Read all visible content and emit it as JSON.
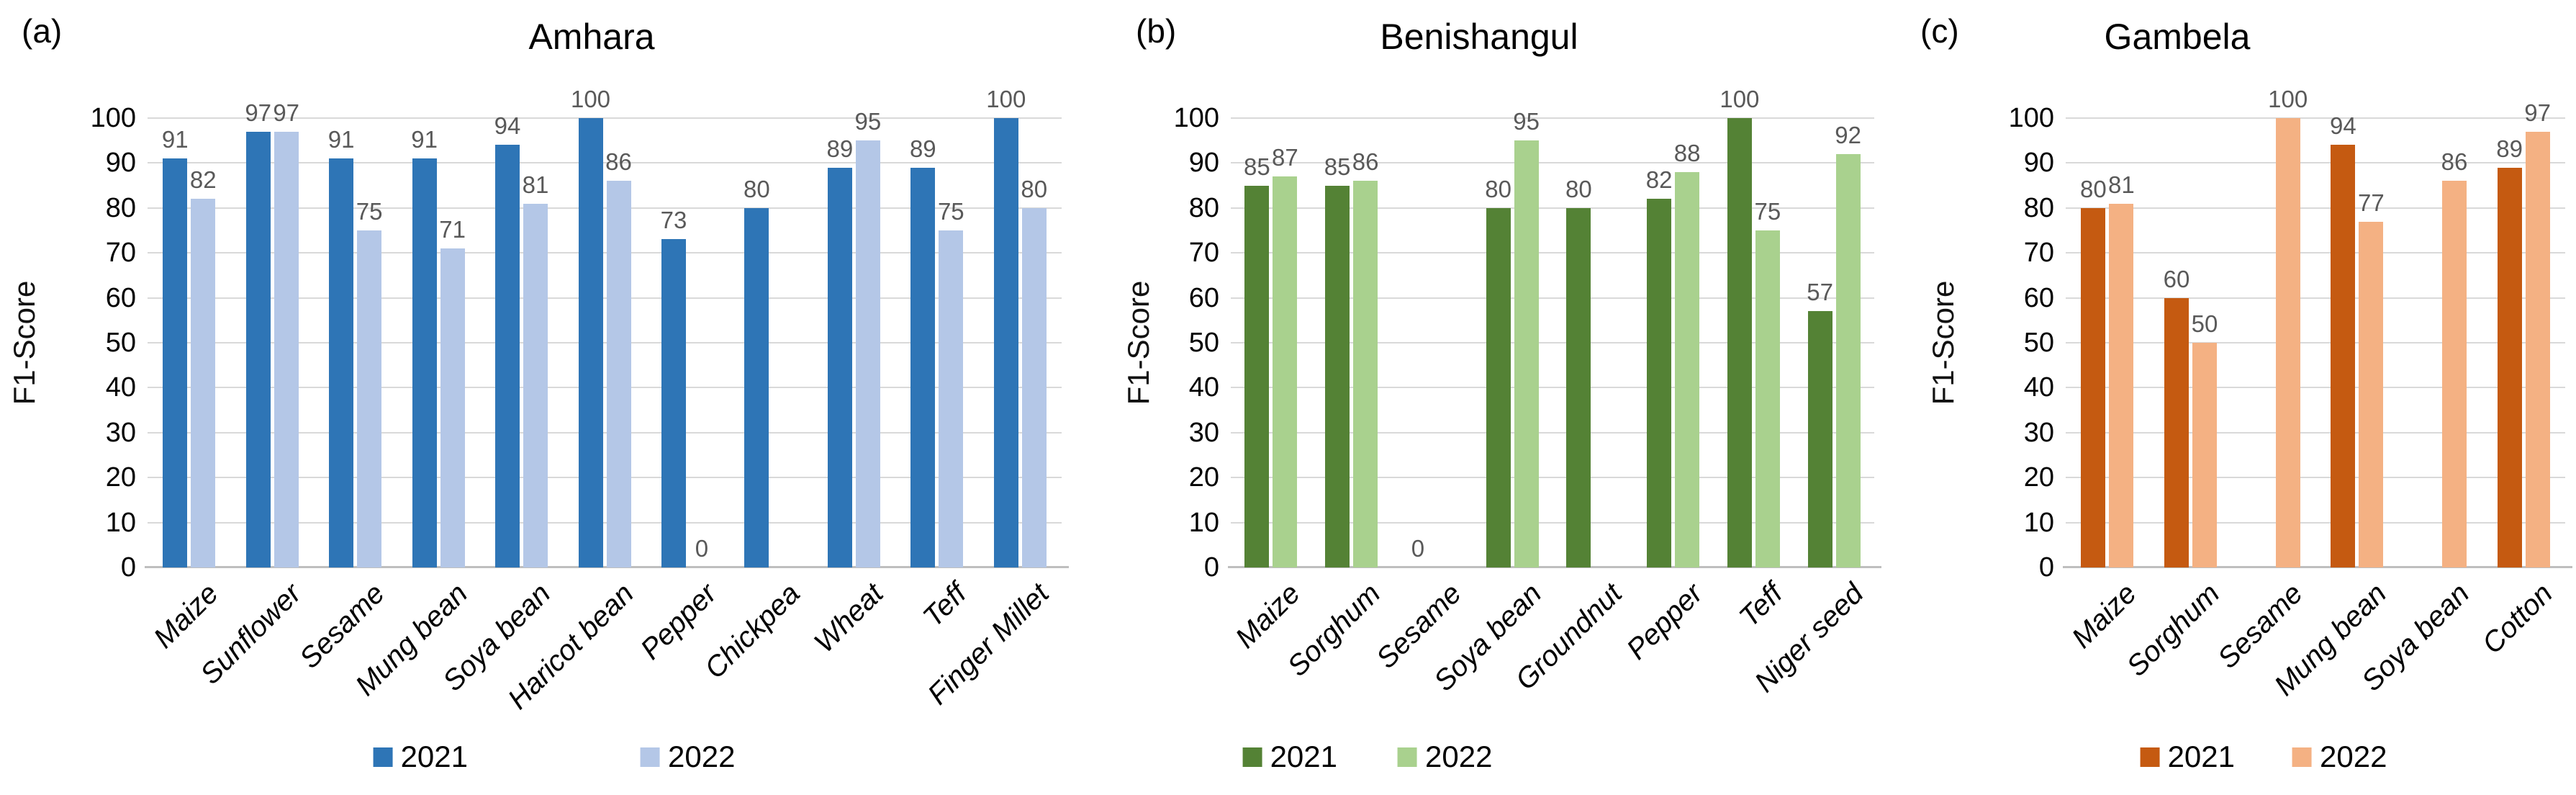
{
  "ylabel": "F1-Score",
  "colors": {
    "gridline": "#D9D9D9",
    "axis_line": "#BFBFBF",
    "value_label": "#595959",
    "text": "#000000"
  },
  "chart_data": [
    {
      "type": "bar",
      "panel_label": "(a)",
      "title": "Amhara",
      "ylabel": "F1-Score",
      "ylim": [
        0,
        100
      ],
      "yticks": [
        0,
        10,
        20,
        30,
        40,
        50,
        60,
        70,
        80,
        90,
        100
      ],
      "grid": true,
      "legend_position": "bottom",
      "categories": [
        "Maize",
        "Sunflower",
        "Sesame",
        "Mung bean",
        "Soya bean",
        "Haricot bean",
        "Pepper",
        "Chickpea",
        "Wheat",
        "Teff",
        "Finger Millet"
      ],
      "series": [
        {
          "name": "2021",
          "color": "#2E75B6",
          "values": [
            91,
            97,
            91,
            91,
            94,
            100,
            73,
            80,
            89,
            89,
            100
          ]
        },
        {
          "name": "2022",
          "color": "#B4C7E7",
          "values": [
            82,
            97,
            75,
            71,
            81,
            86,
            0,
            null,
            95,
            75,
            80
          ]
        }
      ]
    },
    {
      "type": "bar",
      "panel_label": "(b)",
      "title": "Benishangul",
      "ylabel": "F1-Score",
      "ylim": [
        0,
        100
      ],
      "yticks": [
        0,
        10,
        20,
        30,
        40,
        50,
        60,
        70,
        80,
        90,
        100
      ],
      "grid": true,
      "legend_position": "bottom",
      "categories": [
        "Maize",
        "Sorghum",
        "Sesame",
        "Soya bean",
        "Groundnut",
        "Pepper",
        "Teff",
        "Niger seed"
      ],
      "series": [
        {
          "name": "2021",
          "color": "#548235",
          "values": [
            85,
            85,
            0,
            80,
            80,
            82,
            100,
            57
          ]
        },
        {
          "name": "2022",
          "color": "#A9D18E",
          "values": [
            87,
            86,
            null,
            95,
            null,
            88,
            75,
            92
          ]
        }
      ]
    },
    {
      "type": "bar",
      "panel_label": "(c)",
      "title": "Gambela",
      "ylabel": "F1-Score",
      "ylim": [
        0,
        100
      ],
      "yticks": [
        0,
        10,
        20,
        30,
        40,
        50,
        60,
        70,
        80,
        90,
        100
      ],
      "grid": true,
      "legend_position": "bottom",
      "categories": [
        "Maize",
        "Sorghum",
        "Sesame",
        "Mung bean",
        "Soya bean",
        "Cotton"
      ],
      "series": [
        {
          "name": "2021",
          "color": "#C55A11",
          "values": [
            80,
            60,
            null,
            94,
            null,
            89
          ]
        },
        {
          "name": "2022",
          "color": "#F4B183",
          "values": [
            81,
            50,
            100,
            77,
            86,
            97
          ]
        }
      ]
    }
  ]
}
